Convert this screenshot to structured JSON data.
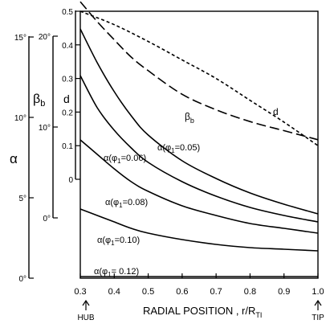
{
  "chart_data": {
    "type": "line",
    "x_axis": {
      "label": "RADIAL POSITION , r/R",
      "label_sub": "TI",
      "min": 0.3,
      "max": 1.0,
      "ticks": [
        "0.3",
        "0.4",
        "0.5",
        "0.6",
        "0.7",
        "0.8",
        "0.9",
        "1.0"
      ],
      "end_labels": {
        "left": "HUB",
        "right": "TIP"
      }
    },
    "y_axes": [
      {
        "id": "alpha",
        "symbol": "α",
        "unit": "deg",
        "min": 0,
        "max": 15,
        "ticks": [
          {
            "v": 0,
            "t": "0°"
          },
          {
            "v": 5,
            "t": "5°"
          },
          {
            "v": 10,
            "t": "10°"
          },
          {
            "v": 15,
            "t": "15°"
          }
        ]
      },
      {
        "id": "beta_b",
        "symbol": "β",
        "symbol_sub": "b",
        "unit": "deg",
        "min": 0,
        "max": 20,
        "ticks": [
          {
            "v": 0,
            "t": "0°"
          },
          {
            "v": 10,
            "t": "10°"
          },
          {
            "v": 20,
            "t": "20°"
          }
        ]
      },
      {
        "id": "d",
        "symbol": "d",
        "min": 0,
        "max": 0.5,
        "ticks": [
          {
            "v": 0,
            "t": "0"
          },
          {
            "v": 0.1,
            "t": "0.1"
          },
          {
            "v": 0.2,
            "t": "0.2"
          },
          {
            "v": 0.3,
            "t": "0.3"
          },
          {
            "v": 0.4,
            "t": "0.4"
          },
          {
            "v": 0.5,
            "t": "0.5"
          }
        ]
      }
    ],
    "series": [
      {
        "name": "d",
        "axis": "d",
        "style": "dotted",
        "x": [
          0.3,
          0.4,
          0.5,
          0.6,
          0.7,
          0.8,
          0.9,
          1.0
        ],
        "y": [
          0.5,
          0.46,
          0.41,
          0.355,
          0.3,
          0.235,
          0.17,
          0.1
        ]
      },
      {
        "name": "βb",
        "axis": "beta_b",
        "style": "dashed",
        "x": [
          0.3,
          0.35,
          0.4,
          0.45,
          0.5,
          0.6,
          0.7,
          0.8,
          0.9,
          1.0
        ],
        "y": [
          23.8,
          21.6,
          19.6,
          17.7,
          16.2,
          13.6,
          11.9,
          10.6,
          9.6,
          8.6
        ]
      },
      {
        "name": "α(φ1=0.05)",
        "axis": "alpha",
        "style": "solid",
        "x": [
          0.3,
          0.35,
          0.4,
          0.45,
          0.5,
          0.6,
          0.7,
          0.8,
          0.9,
          1.0
        ],
        "y": [
          15.5,
          13.4,
          11.6,
          10.1,
          8.9,
          7.3,
          6.2,
          5.3,
          4.6,
          4.0
        ]
      },
      {
        "name": "α(φ1=0.06)",
        "axis": "alpha",
        "style": "solid",
        "x": [
          0.3,
          0.35,
          0.4,
          0.45,
          0.5,
          0.6,
          0.7,
          0.8,
          0.9,
          1.0
        ],
        "y": [
          12.6,
          10.6,
          9.2,
          8.1,
          7.2,
          6.0,
          5.1,
          4.4,
          3.9,
          3.5
        ]
      },
      {
        "name": "α(φ1=0.08)",
        "axis": "alpha",
        "style": "solid",
        "x": [
          0.3,
          0.35,
          0.4,
          0.45,
          0.5,
          0.6,
          0.7,
          0.8,
          0.9,
          1.0
        ],
        "y": [
          8.6,
          7.7,
          6.8,
          6.0,
          5.4,
          4.5,
          3.9,
          3.4,
          3.1,
          2.8
        ]
      },
      {
        "name": "α(φ1=0.10)",
        "axis": "alpha",
        "style": "solid",
        "x": [
          0.3,
          0.35,
          0.4,
          0.45,
          0.5,
          0.6,
          0.7,
          0.8,
          0.9,
          1.0
        ],
        "y": [
          4.3,
          3.9,
          3.5,
          3.1,
          2.8,
          2.4,
          2.1,
          1.9,
          1.8,
          1.7
        ]
      },
      {
        "name": "α(φ1=0.12)",
        "axis": "alpha",
        "style": "solid",
        "x": [
          0.3,
          1.0
        ],
        "y": [
          0.1,
          0.1
        ]
      }
    ],
    "annotations": [
      {
        "id": "beta",
        "text": "β",
        "sub": "b"
      },
      {
        "id": "d",
        "text": "d"
      },
      {
        "id": "a05",
        "text": "α(φ",
        "sub": "1",
        "tail": "=0.05)"
      },
      {
        "id": "a06",
        "text": "α(φ",
        "sub": "1",
        "tail": "=0.06)"
      },
      {
        "id": "a08",
        "text": "α(φ",
        "sub": "1",
        "tail": "=0.08)"
      },
      {
        "id": "a10",
        "text": "α(φ",
        "sub": "1",
        "tail": "=0.10)"
      },
      {
        "id": "a12",
        "text": "α(φ",
        "sub": "1",
        "tail": "= 0.12)"
      }
    ]
  }
}
